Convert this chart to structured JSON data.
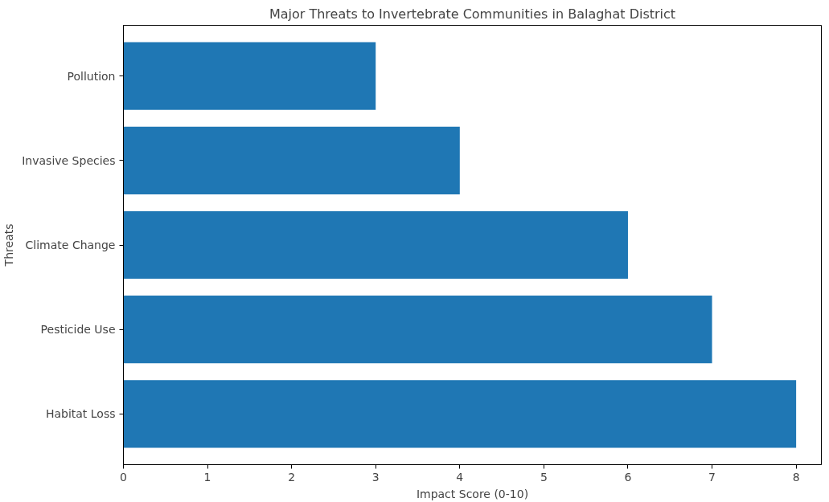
{
  "chart_data": {
    "type": "bar",
    "orientation": "horizontal",
    "title": "Major Threats to Invertebrate Communities in Balaghat District",
    "xlabel": "Impact Score (0-10)",
    "ylabel": "Threats",
    "categories": [
      "Pollution",
      "Invasive Species",
      "Climate Change",
      "Pesticide Use",
      "Habitat Loss"
    ],
    "values": [
      3,
      4,
      6,
      7,
      8
    ],
    "color": "#1f77b4",
    "xlim": [
      0,
      8.3
    ],
    "xticks": [
      0,
      1,
      2,
      3,
      4,
      5,
      6,
      7,
      8
    ],
    "grid": false
  }
}
